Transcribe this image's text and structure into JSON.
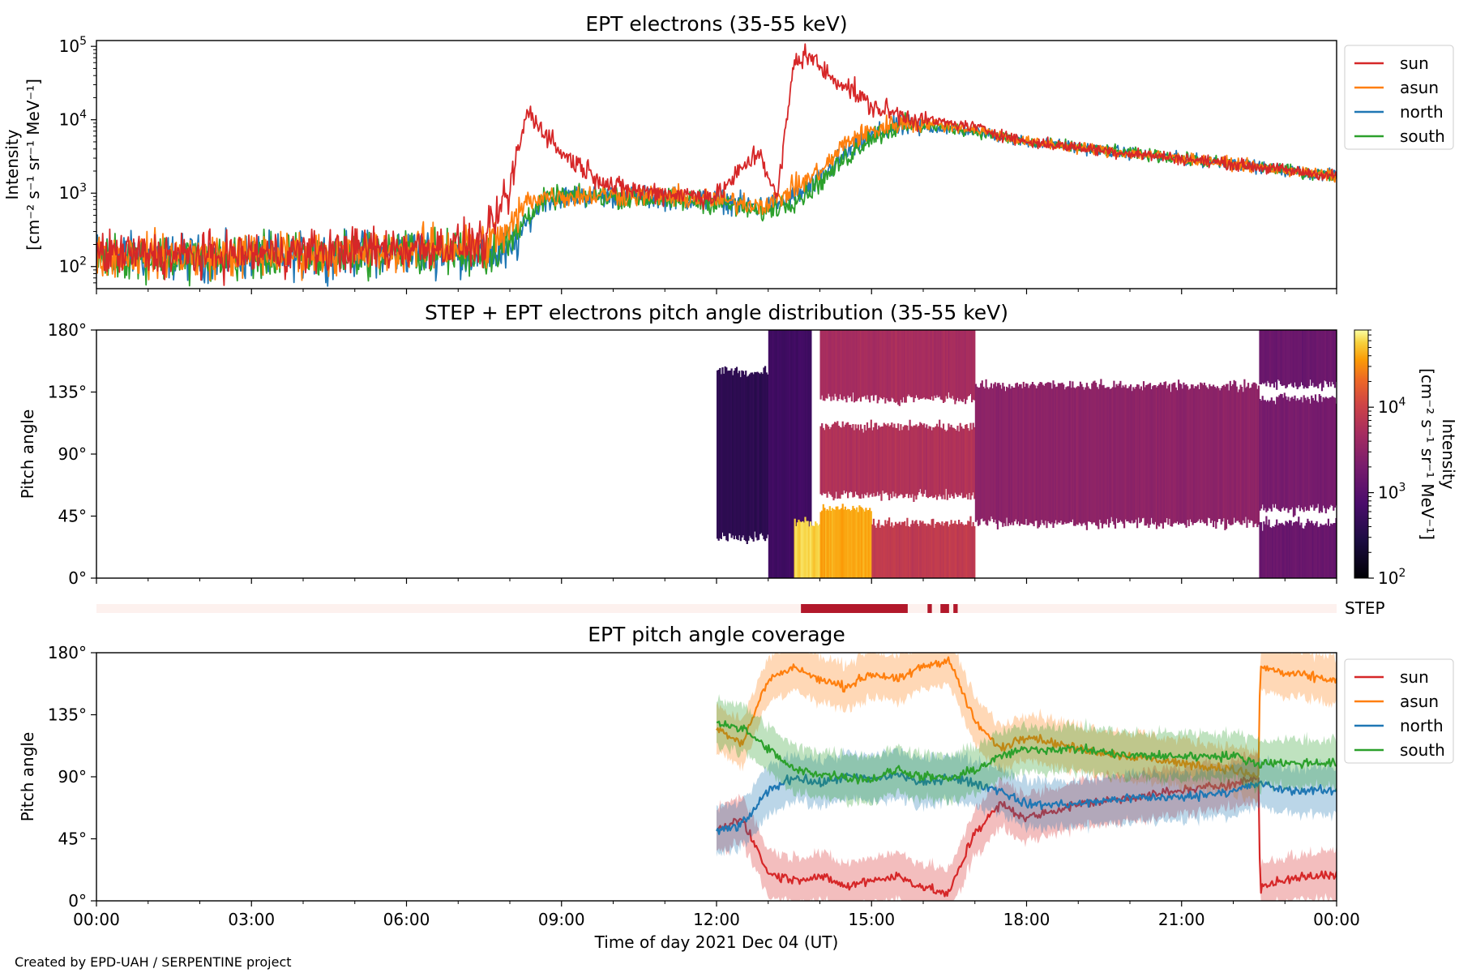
{
  "figure": {
    "credit": "Created by EPD-UAH / SERPENTINE project",
    "xlabel": "Time of day 2021 Dec 04 (UT)",
    "xticks": [
      "00:00",
      "03:00",
      "06:00",
      "09:00",
      "12:00",
      "15:00",
      "18:00",
      "21:00",
      "00:00"
    ],
    "x_range_hours": [
      0,
      24
    ],
    "colors": {
      "sun": "#d62728",
      "asun": "#ff7f0e",
      "north": "#1f77b4",
      "south": "#2ca02c",
      "step_bar": "#b2182b",
      "step_bg": "#fdf1ee"
    }
  },
  "panel1": {
    "title": "EPT electrons (35-55 keV)",
    "ylabel_line1": "Intensity",
    "ylabel_line2": "[cm⁻² s⁻¹ sr⁻¹ MeV⁻¹]",
    "yticks": [
      {
        "base": "10",
        "exp": "2",
        "value": 100
      },
      {
        "base": "10",
        "exp": "3",
        "value": 1000
      },
      {
        "base": "10",
        "exp": "4",
        "value": 10000
      },
      {
        "base": "10",
        "exp": "5",
        "value": 100000
      }
    ],
    "legend": [
      "sun",
      "asun",
      "north",
      "south"
    ]
  },
  "panel2": {
    "title": "STEP + EPT electrons pitch angle distribution (35-55 keV)",
    "ylabel": "Pitch angle",
    "yticks": [
      "0°",
      "45°",
      "90°",
      "135°",
      "180°"
    ],
    "colorbar_label_line1": "Intensity",
    "colorbar_label_line2": "[cm⁻² s⁻¹ sr⁻¹ MeV⁻¹]",
    "colorbar_ticks": [
      {
        "base": "10",
        "exp": "2",
        "value": 100
      },
      {
        "base": "10",
        "exp": "3",
        "value": 1000
      },
      {
        "base": "10",
        "exp": "4",
        "value": 10000
      }
    ]
  },
  "step_bar": {
    "label": "STEP"
  },
  "panel3": {
    "title": "EPT pitch angle coverage",
    "ylabel": "Pitch angle",
    "yticks": [
      "0°",
      "45°",
      "90°",
      "135°",
      "180°"
    ],
    "legend": [
      "sun",
      "asun",
      "north",
      "south"
    ]
  },
  "chart_data": [
    {
      "type": "line",
      "title": "EPT electrons (35-55 keV)",
      "xlabel": "Time of day 2021 Dec 04 (UT)",
      "ylabel": "Intensity [cm⁻² s⁻¹ sr⁻¹ MeV⁻¹]",
      "yscale": "log",
      "ylim": [
        50,
        120000
      ],
      "xlim": [
        "00:00",
        "24:00"
      ],
      "legend_position": "outside-right",
      "x": [
        "00:00",
        "02:00",
        "04:00",
        "06:00",
        "07:30",
        "08:00",
        "08:20",
        "08:40",
        "09:00",
        "10:00",
        "11:00",
        "12:00",
        "12:50",
        "13:10",
        "13:30",
        "13:45",
        "14:10",
        "14:30",
        "15:00",
        "15:30",
        "16:00",
        "17:00",
        "18:00",
        "20:00",
        "22:00",
        "24:00"
      ],
      "series": [
        {
          "name": "sun",
          "values": [
            150,
            140,
            160,
            180,
            200,
            1100,
            13000,
            7000,
            3500,
            1200,
            1000,
            900,
            3800,
            800,
            60000,
            80000,
            40000,
            30000,
            15000,
            12000,
            10000,
            8000,
            5000,
            3500,
            2500,
            1700
          ]
        },
        {
          "name": "asun",
          "values": [
            150,
            140,
            150,
            170,
            200,
            300,
            800,
            900,
            900,
            950,
            900,
            800,
            700,
            800,
            1200,
            1500,
            2500,
            5000,
            7000,
            9000,
            9000,
            7500,
            5000,
            3500,
            2500,
            1700
          ]
        },
        {
          "name": "north",
          "values": [
            150,
            130,
            140,
            160,
            150,
            150,
            400,
            800,
            900,
            900,
            850,
            800,
            650,
            700,
            900,
            1100,
            2000,
            3500,
            6000,
            8000,
            8000,
            7000,
            5000,
            3500,
            2500,
            1700
          ]
        },
        {
          "name": "south",
          "values": [
            140,
            130,
            140,
            160,
            150,
            200,
            500,
            800,
            900,
            900,
            800,
            750,
            550,
            650,
            800,
            1000,
            1800,
            3000,
            6000,
            8000,
            8500,
            7000,
            5000,
            3500,
            2500,
            1700
          ]
        }
      ]
    },
    {
      "type": "heatmap",
      "title": "STEP + EPT electrons pitch angle distribution (35-55 keV)",
      "ylabel": "Pitch angle",
      "ylim": [
        0,
        180
      ],
      "colorscale": "inferno",
      "colorbar": {
        "label": "Intensity [cm⁻² s⁻¹ sr⁻¹ MeV⁻¹]",
        "scale": "log",
        "range": [
          100,
          80000
        ]
      },
      "data_coverage_start": "12:00",
      "bands": [
        {
          "from": "12:00",
          "to": "13:00",
          "pitch_min": 30,
          "pitch_max": 150,
          "intensity": 400
        },
        {
          "from": "13:00",
          "to": "13:50",
          "pitch_min": 0,
          "pitch_max": 180,
          "intensity": 600
        },
        {
          "from": "13:30",
          "to": "14:00",
          "pitch_min": 0,
          "pitch_max": 40,
          "intensity": 60000
        },
        {
          "from": "14:00",
          "to": "15:00",
          "pitch_min": 0,
          "pitch_max": 50,
          "intensity": 40000
        },
        {
          "from": "14:00",
          "to": "17:00",
          "pitch_min": 60,
          "pitch_max": 110,
          "intensity": 6000
        },
        {
          "from": "14:00",
          "to": "17:00",
          "pitch_min": 130,
          "pitch_max": 180,
          "intensity": 5000
        },
        {
          "from": "15:00",
          "to": "17:00",
          "pitch_min": 0,
          "pitch_max": 40,
          "intensity": 8000
        },
        {
          "from": "17:00",
          "to": "22:30",
          "pitch_min": 40,
          "pitch_max": 140,
          "intensity": 3000
        },
        {
          "from": "22:30",
          "to": "24:00",
          "pitch_min": 50,
          "pitch_max": 130,
          "intensity": 2000
        },
        {
          "from": "22:30",
          "to": "24:00",
          "pitch_min": 0,
          "pitch_max": 40,
          "intensity": 1500
        },
        {
          "from": "22:30",
          "to": "24:00",
          "pitch_min": 140,
          "pitch_max": 180,
          "intensity": 1500
        }
      ]
    },
    {
      "type": "bar",
      "title": "STEP",
      "description_label": "STEP",
      "segments": [
        {
          "from": "13:38",
          "to": "15:42"
        },
        {
          "from": "16:05",
          "to": "16:10"
        },
        {
          "from": "16:20",
          "to": "16:30"
        },
        {
          "from": "16:35",
          "to": "16:40"
        }
      ]
    },
    {
      "type": "line",
      "title": "EPT pitch angle coverage",
      "xlabel": "Time of day 2021 Dec 04 (UT)",
      "ylabel": "Pitch angle",
      "ylim": [
        0,
        180
      ],
      "legend_position": "outside-right",
      "x": [
        "12:00",
        "12:30",
        "13:00",
        "13:30",
        "14:00",
        "14:30",
        "15:00",
        "15:30",
        "16:00",
        "16:30",
        "17:00",
        "17:30",
        "18:00",
        "19:00",
        "20:00",
        "21:00",
        "22:00",
        "22:30",
        "22:31",
        "23:00",
        "24:00"
      ],
      "series": [
        {
          "name": "sun",
          "values": [
            50,
            60,
            20,
            15,
            18,
            10,
            15,
            18,
            10,
            5,
            50,
            70,
            60,
            70,
            75,
            80,
            85,
            90,
            10,
            15,
            20
          ]
        },
        {
          "name": "asun",
          "values": [
            125,
            115,
            160,
            170,
            160,
            155,
            165,
            160,
            170,
            175,
            130,
            110,
            120,
            110,
            105,
            100,
            95,
            90,
            170,
            165,
            160
          ]
        },
        {
          "name": "north",
          "values": [
            50,
            55,
            80,
            90,
            85,
            90,
            88,
            92,
            85,
            90,
            85,
            80,
            70,
            70,
            75,
            75,
            80,
            85,
            85,
            80,
            80
          ]
        },
        {
          "name": "south",
          "values": [
            130,
            125,
            110,
            95,
            92,
            90,
            88,
            95,
            90,
            88,
            95,
            105,
            110,
            110,
            105,
            105,
            105,
            100,
            100,
            100,
            100
          ]
        }
      ]
    }
  ]
}
